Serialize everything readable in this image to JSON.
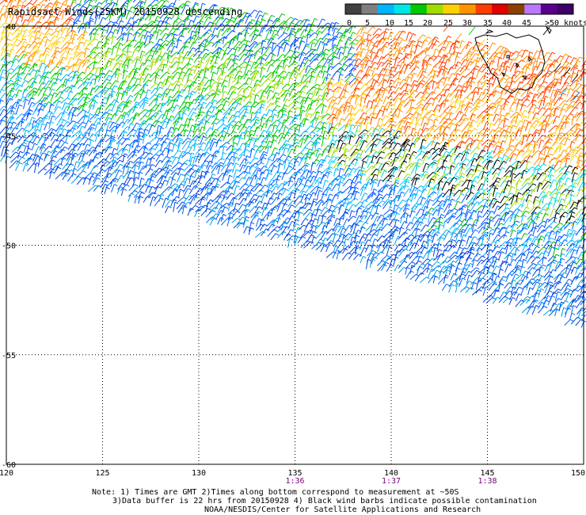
{
  "title": "Rapidsact Winds(25KM) 20150928 descending",
  "colorbar": {
    "labels": [
      "0",
      "5",
      "10",
      "15",
      "20",
      "25",
      "30",
      "35",
      "40",
      "45",
      ">50 knots"
    ],
    "colors": [
      "#404040",
      "#7f7f7f",
      "#00b4ff",
      "#00e6e6",
      "#00c800",
      "#a0dc00",
      "#ffd000",
      "#ff9400",
      "#ff3c00",
      "#e00000",
      "#8c4000",
      "#b878ff",
      "#5a008c",
      "#3c0064"
    ]
  },
  "axes": {
    "lon_ticks": [
      "120",
      "125",
      "130",
      "135",
      "140",
      "145",
      "150"
    ],
    "lat_ticks": [
      "-40",
      "-45",
      "-50",
      "-55",
      "-60"
    ],
    "lon_range": [
      120,
      150
    ],
    "lat_range": [
      -60,
      -40
    ]
  },
  "times": [
    {
      "lon": 135,
      "label": "1:36"
    },
    {
      "lon": 140,
      "label": "1:37"
    },
    {
      "lon": 145,
      "label": "1:38"
    }
  ],
  "notes": {
    "line1": "Note: 1) Times are GMT 2)Times along bottom correspond to measurement at ~50S",
    "line2": "3)Data buffer is 22 hrs from 20150928 4) Black wind barbs indicate possible contamination",
    "line3": "NOAA/NESDIS/Center for Satellite Applications and Research"
  },
  "colors": {
    "time_label": "#800080",
    "grid": "#000000",
    "land": "#000000"
  }
}
